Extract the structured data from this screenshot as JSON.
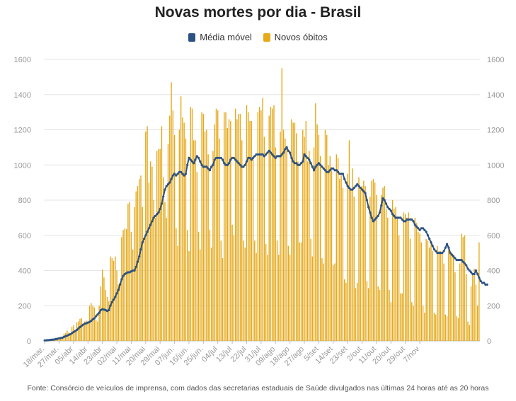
{
  "title": "Novas mortes por dia - Brasil",
  "legend": [
    {
      "label": "Média móvel",
      "color": "#2c5282"
    },
    {
      "label": "Novos óbitos",
      "color": "#e5a91a"
    }
  ],
  "source": "Fonte: Consórcio de veículos de imprensa, com dados das secretarias estaduais de Saúde divulgados nas últimas 24 horas até as 20 horas",
  "chart_data": {
    "type": "bar",
    "title": "Novas mortes por dia - Brasil",
    "ylim": [
      0,
      1600
    ],
    "yticks": [
      0,
      200,
      400,
      600,
      800,
      1000,
      1200,
      1400,
      1600
    ],
    "x_start": "18/mar.",
    "xtick_labels": [
      "18/mar.",
      "27/mar.",
      "05/abr",
      "14/abr",
      "23/abr",
      "02/mai",
      "11/mai",
      "20/mai",
      "29/mai",
      "07/jun.",
      "16/jun.",
      "25/jun.",
      "04/jul",
      "13/jul",
      "22/jul",
      "31/jul",
      "09/ago",
      "18/ago",
      "27/ago",
      "5/set",
      "14/set",
      "23/set",
      "2/out",
      "11/out",
      "20/out",
      "29/out",
      "7/nov"
    ],
    "bar_color": "#e5a91a",
    "line_color": "#2c5282",
    "series": [
      {
        "name": "Novos óbitos",
        "type": "bar",
        "values": [
          2,
          4,
          3,
          7,
          8,
          11,
          12,
          18,
          12,
          21,
          22,
          25,
          40,
          45,
          58,
          48,
          40,
          80,
          88,
          60,
          105,
          110,
          125,
          130,
          90,
          110,
          115,
          105,
          200,
          215,
          200,
          190,
          120,
          110,
          200,
          310,
          405,
          360,
          290,
          250,
          225,
          480,
          470,
          455,
          480,
          400,
          320,
          330,
          590,
          630,
          640,
          635,
          780,
          790,
          620,
          520,
          760,
          850,
          880,
          920,
          940,
          760,
          570,
          1190,
          1220,
          900,
          1020,
          990,
          800,
          700,
          1080,
          1090,
          1090,
          1220,
          930,
          790,
          700,
          1120,
          1280,
          1470,
          1310,
          1170,
          640,
          540,
          1200,
          1390,
          1270,
          1240,
          1150,
          630,
          510,
          1330,
          1320,
          1140,
          1140,
          960,
          620,
          520,
          1300,
          1290,
          1190,
          1200,
          1060,
          630,
          530,
          1080,
          1230,
          1320,
          1310,
          1150,
          570,
          470,
          1300,
          1300,
          1210,
          1260,
          1250,
          660,
          600,
          1320,
          1260,
          1290,
          1290,
          1140,
          570,
          530,
          1340,
          1300,
          1250,
          1250,
          1050,
          570,
          500,
          1300,
          1330,
          1310,
          1380,
          1160,
          550,
          490,
          1280,
          1330,
          1320,
          1340,
          1100,
          570,
          490,
          1190,
          1550,
          1200,
          1150,
          1110,
          540,
          490,
          1260,
          1240,
          1240,
          1180,
          1020,
          560,
          560,
          1200,
          1160,
          1250,
          1020,
          1080,
          580,
          480,
          1100,
          1350,
          1230,
          1170,
          1050,
          470,
          440,
          1200,
          1170,
          1000,
          1050,
          970,
          430,
          440,
          1060,
          1040,
          920,
          940,
          870,
          350,
          330,
          950,
          1140,
          860,
          980,
          820,
          300,
          330,
          930,
          860,
          880,
          910,
          880,
          340,
          300,
          820,
          910,
          920,
          900,
          830,
          310,
          290,
          830,
          870,
          880,
          750,
          700,
          290,
          220,
          800,
          750,
          760,
          700,
          600,
          270,
          270,
          730,
          720,
          700,
          730,
          580,
          220,
          200,
          700,
          670,
          620,
          610,
          560,
          200,
          160,
          580,
          570,
          530,
          570,
          510,
          160,
          150,
          540,
          510,
          510,
          500,
          440,
          150,
          140,
          520,
          510,
          500,
          490,
          390,
          140,
          130,
          440,
          610,
          590,
          600,
          380,
          110,
          90,
          310,
          380,
          410,
          320,
          200,
          560
        ]
      },
      {
        "name": "Média móvel",
        "type": "line",
        "values": [
          2,
          3,
          4,
          5,
          6,
          7,
          8,
          10,
          12,
          14,
          16,
          18,
          22,
          26,
          30,
          34,
          38,
          44,
          50,
          56,
          62,
          70,
          78,
          86,
          92,
          98,
          100,
          104,
          108,
          114,
          122,
          128,
          140,
          150,
          160,
          175,
          180,
          178,
          175,
          170,
          175,
          200,
          220,
          235,
          250,
          270,
          290,
          320,
          350,
          370,
          380,
          385,
          390,
          390,
          395,
          400,
          400,
          420,
          450,
          480,
          520,
          560,
          580,
          600,
          620,
          640,
          660,
          680,
          700,
          710,
          720,
          730,
          750,
          780,
          820,
          860,
          880,
          890,
          900,
          920,
          940,
          950,
          940,
          950,
          960,
          960,
          950,
          940,
          950,
          1000,
          1040,
          1030,
          1020,
          1010,
          1030,
          1050,
          1040,
          1020,
          1000,
          990,
          990,
          990,
          980,
          970,
          990,
          1000,
          1030,
          1040,
          1040,
          1040,
          1040,
          1030,
          1010,
          1000,
          1000,
          1010,
          1030,
          1040,
          1040,
          1030,
          1020,
          1010,
          1000,
          990,
          990,
          1000,
          1020,
          1040,
          1040,
          1030,
          1040,
          1050,
          1060,
          1060,
          1060,
          1060,
          1060,
          1050,
          1060,
          1070,
          1080,
          1070,
          1060,
          1050,
          1040,
          1050,
          1050,
          1050,
          1060,
          1070,
          1090,
          1100,
          1080,
          1070,
          1040,
          1020,
          1010,
          1010,
          1000,
          1000,
          1010,
          1020,
          1060,
          1050,
          1040,
          1030,
          1010,
          990,
          970,
          990,
          1000,
          1010,
          1000,
          990,
          980,
          970,
          960,
          960,
          970,
          980,
          980,
          970,
          970,
          960,
          950,
          950,
          950,
          920,
          900,
          880,
          870,
          860,
          860,
          870,
          880,
          890,
          880,
          870,
          860,
          850,
          840,
          800,
          760,
          730,
          700,
          680,
          690,
          700,
          710,
          730,
          770,
          810,
          800,
          780,
          760,
          750,
          740,
          720,
          710,
          700,
          700,
          700,
          700,
          690,
          680,
          680,
          690,
          690,
          690,
          690,
          680,
          660,
          650,
          640,
          630,
          640,
          640,
          630,
          620,
          600,
          580,
          560,
          540,
          520,
          510,
          500,
          500,
          500,
          500,
          510,
          530,
          550,
          530,
          500,
          490,
          480,
          470,
          460,
          460,
          460,
          460,
          450,
          440,
          430,
          410,
          400,
          390,
          380,
          380,
          400,
          380,
          360,
          340,
          330,
          330,
          320,
          320
        ]
      }
    ]
  }
}
